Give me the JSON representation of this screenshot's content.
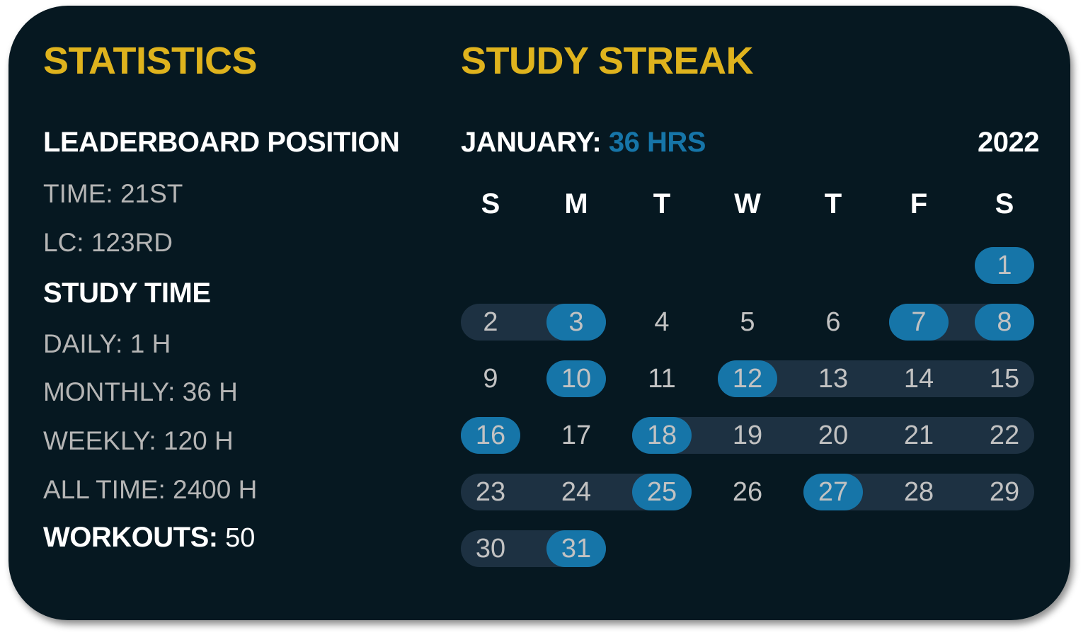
{
  "statistics": {
    "title": "STATISTICS",
    "leaderboard_heading": "LEADERBOARD POSITION",
    "time": "TIME: 21ST",
    "lc": "LC: 123RD",
    "study_time_heading": "STUDY TIME",
    "daily": "DAILY: 1 H",
    "monthly": "MONTHLY: 36 H",
    "weekly": "WEEKLY: 120 H",
    "all_time": "ALL TIME: 2400 H",
    "workouts_label": "WORKOUTS:",
    "workouts_value": " 50"
  },
  "streak": {
    "title": "STUDY STREAK",
    "month_label": "JANUARY:",
    "month_hours": " 36 HRS",
    "year": "2022",
    "weekdays": [
      "S",
      "M",
      "T",
      "W",
      "T",
      "F",
      "S"
    ],
    "first_weekday_index": 6,
    "days_in_month": 31,
    "highlighted_days": [
      1,
      3,
      7,
      8,
      10,
      12,
      16,
      18,
      25,
      27,
      31
    ],
    "streak_ranges": [
      [
        2,
        3
      ],
      [
        7,
        8
      ],
      [
        12,
        15
      ],
      [
        16,
        16
      ],
      [
        18,
        22
      ],
      [
        23,
        25
      ],
      [
        27,
        29
      ],
      [
        30,
        31
      ]
    ],
    "colors": {
      "highlight": "#1675a8",
      "streak_band": "#1d3142",
      "title": "#dfb31d"
    }
  }
}
